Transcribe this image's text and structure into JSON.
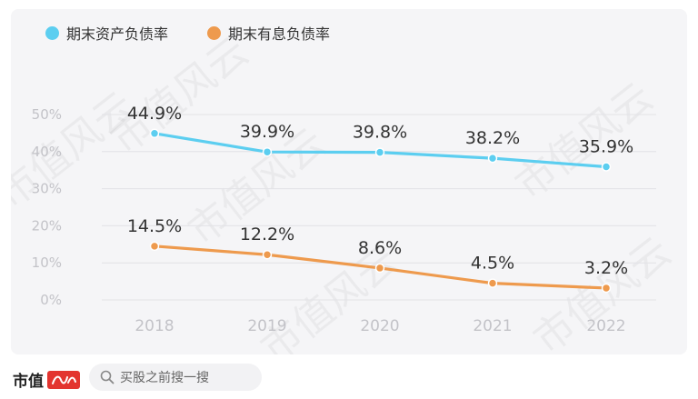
{
  "chart_data": {
    "type": "line",
    "categories": [
      "2018",
      "2019",
      "2020",
      "2021",
      "2022"
    ],
    "series": [
      {
        "name": "期末资产负债率",
        "color": "#5ccef0",
        "values": [
          44.9,
          39.9,
          39.8,
          38.2,
          35.9
        ],
        "labels": [
          "44.9%",
          "39.9%",
          "39.8%",
          "38.2%",
          "35.9%"
        ]
      },
      {
        "name": "期末有息负债率",
        "color": "#ee9a4d",
        "values": [
          14.5,
          12.2,
          8.6,
          4.5,
          3.2
        ],
        "labels": [
          "14.5%",
          "12.2%",
          "8.6%",
          "4.5%",
          "3.2%"
        ]
      }
    ],
    "yticks": [
      "0%",
      "10%",
      "20%",
      "30%",
      "40%",
      "50%"
    ],
    "ylim": [
      0,
      50
    ],
    "grid": true,
    "legend_position": "top-left"
  },
  "watermark": "市值风云",
  "footer": {
    "brand": "市值",
    "brand_stamp": "风云",
    "search_placeholder": "买股之前搜一搜"
  }
}
